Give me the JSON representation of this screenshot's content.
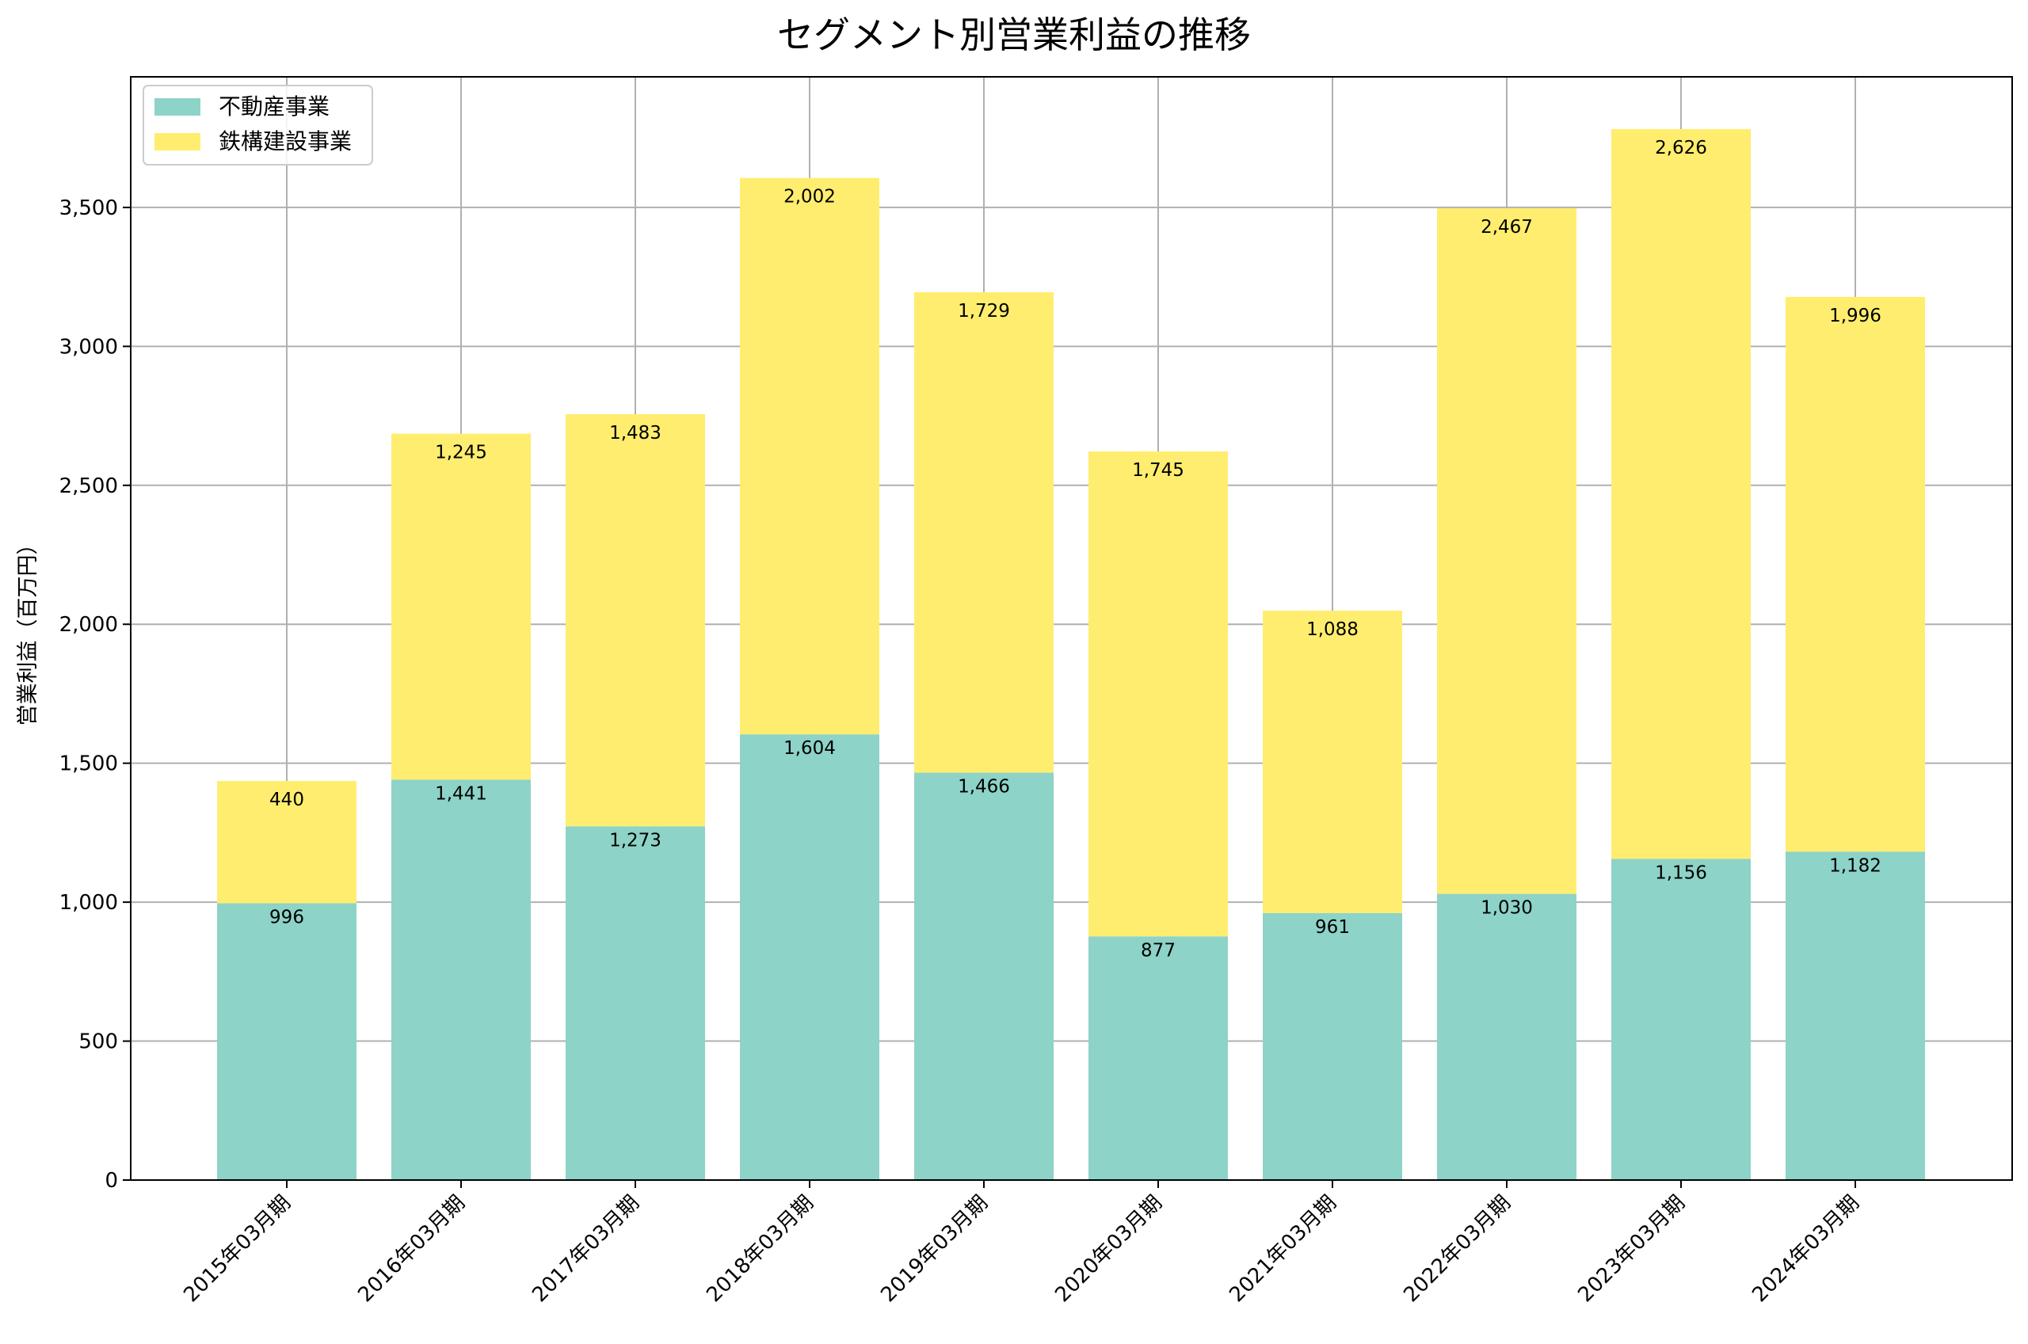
{
  "chart_data": {
    "type": "bar",
    "stacked": true,
    "title": "セグメント別営業利益の推移",
    "xlabel": "",
    "ylabel": "営業利益（百万円）",
    "ylim": [
      0,
      3970
    ],
    "yticks": [
      0,
      500,
      1000,
      1500,
      2000,
      2500,
      3000,
      3500
    ],
    "ytick_labels": [
      "0",
      "500",
      "1,000",
      "1,500",
      "2,000",
      "2,500",
      "3,000",
      "3,500"
    ],
    "grid": true,
    "legend_position": "top-left",
    "categories": [
      "2015年03月期",
      "2016年03月期",
      "2017年03月期",
      "2018年03月期",
      "2019年03月期",
      "2020年03月期",
      "2021年03月期",
      "2022年03月期",
      "2023年03月期",
      "2024年03月期"
    ],
    "series": [
      {
        "name": "不動産事業",
        "color": "#8dd3c7",
        "values": [
          996,
          1441,
          1273,
          1604,
          1466,
          877,
          961,
          1030,
          1156,
          1182
        ],
        "labels": [
          "996",
          "1,441",
          "1,273",
          "1,604",
          "1,466",
          "877",
          "961",
          "1,030",
          "1,156",
          "1,182"
        ]
      },
      {
        "name": "鉄構建設事業",
        "color": "#ffed6f",
        "values": [
          440,
          1245,
          1483,
          2002,
          1729,
          1745,
          1088,
          2467,
          2626,
          1996
        ],
        "labels": [
          "440",
          "1,245",
          "1,483",
          "2,002",
          "1,729",
          "1,745",
          "1,088",
          "2,467",
          "2,626",
          "1,996"
        ]
      }
    ]
  }
}
